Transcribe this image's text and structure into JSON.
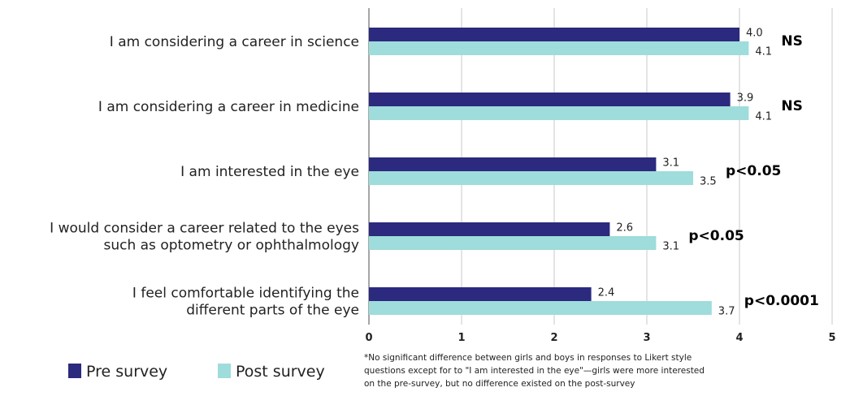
{
  "chart_data": {
    "type": "bar",
    "orientation": "horizontal",
    "categories": [
      [
        "I am considering a career in science"
      ],
      [
        "I am considering a career in medicine"
      ],
      [
        "I am interested in the eye"
      ],
      [
        "I would consider a career related to the eyes",
        "such as optometry or ophthalmology"
      ],
      [
        "I feel comfortable identifying the",
        "different parts of the eye"
      ]
    ],
    "series": [
      {
        "name": "Pre survey",
        "color": "#2b2a7e",
        "values": [
          4.0,
          3.9,
          3.1,
          2.6,
          2.4
        ],
        "labels": [
          "4.0",
          "3.9",
          "3.1",
          "2.6",
          "2.4"
        ]
      },
      {
        "name": "Post survey",
        "color": "#9fdcdc",
        "values": [
          4.1,
          4.1,
          3.5,
          3.1,
          3.7
        ],
        "labels": [
          "4.1",
          "4.1",
          "3.5",
          "3.1",
          "3.7"
        ]
      }
    ],
    "significance": [
      "NS",
      "NS",
      "p<0.05",
      "p<0.05",
      "p<0.0001"
    ],
    "xlim": [
      0,
      5
    ],
    "xticks": [
      "0",
      "1",
      "2",
      "3",
      "4",
      "5"
    ],
    "grid": "vertical",
    "legend": "bottom-left",
    "footnote": [
      "*No significant difference between girls and boys in responses to Likert style",
      "questions except for to \"I am interested in the eye\"—girls were more interested",
      "on the pre-survey, but no difference existed on the post-survey"
    ]
  }
}
